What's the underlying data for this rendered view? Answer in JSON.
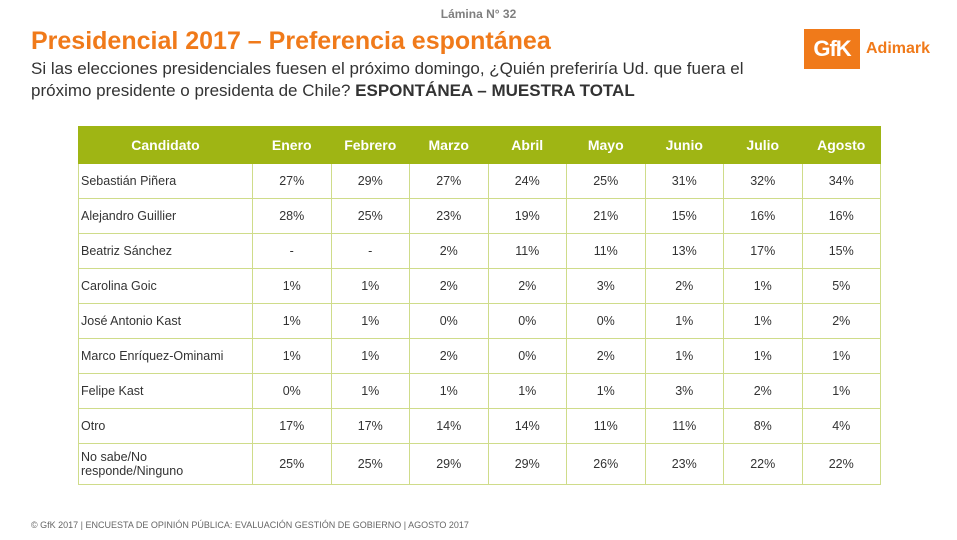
{
  "header": {
    "lamina": "Lámina N° 32",
    "title": "Presidencial 2017 – Preferencia espontánea",
    "subtitle_plain": "Si las elecciones presidenciales fuesen el próximo domingo, ¿Quién preferiría Ud. que fuera el próximo presidente o presidenta de Chile? ",
    "subtitle_bold": "ESPONTÁNEA – MUESTRA TOTAL"
  },
  "logo": {
    "gfk": "GfK",
    "adimark": "Adimark"
  },
  "colors": {
    "title": "#f07a1a",
    "header_bg": "#9fb514",
    "grid": "#cfdc8a"
  },
  "table": {
    "columns": [
      "Candidato",
      "Enero",
      "Febrero",
      "Marzo",
      "Abril",
      "Mayo",
      "Junio",
      "Julio",
      "Agosto"
    ],
    "rows": [
      [
        "Sebastián Piñera",
        "27%",
        "29%",
        "27%",
        "24%",
        "25%",
        "31%",
        "32%",
        "34%"
      ],
      [
        "Alejandro Guillier",
        "28%",
        "25%",
        "23%",
        "19%",
        "21%",
        "15%",
        "16%",
        "16%"
      ],
      [
        "Beatriz Sánchez",
        "-",
        "-",
        "2%",
        "11%",
        "11%",
        "13%",
        "17%",
        "15%"
      ],
      [
        "Carolina Goic",
        "1%",
        "1%",
        "2%",
        "2%",
        "3%",
        "2%",
        "1%",
        "5%"
      ],
      [
        "José Antonio Kast",
        "1%",
        "1%",
        "0%",
        "0%",
        "0%",
        "1%",
        "1%",
        "2%"
      ],
      [
        "Marco Enríquez-Ominami",
        "1%",
        "1%",
        "2%",
        "0%",
        "2%",
        "1%",
        "1%",
        "1%"
      ],
      [
        "Felipe Kast",
        "0%",
        "1%",
        "1%",
        "1%",
        "1%",
        "3%",
        "2%",
        "1%"
      ],
      [
        "Otro",
        "17%",
        "17%",
        "14%",
        "14%",
        "11%",
        "11%",
        "8%",
        "4%"
      ],
      [
        "No sabe/No responde/Ninguno",
        "25%",
        "25%",
        "29%",
        "29%",
        "26%",
        "23%",
        "22%",
        "22%"
      ]
    ]
  },
  "footer": "© GfK 2017 | ENCUESTA DE OPINIÓN PÚBLICA: EVALUACIÓN GESTIÓN DE GOBIERNO | AGOSTO 2017"
}
